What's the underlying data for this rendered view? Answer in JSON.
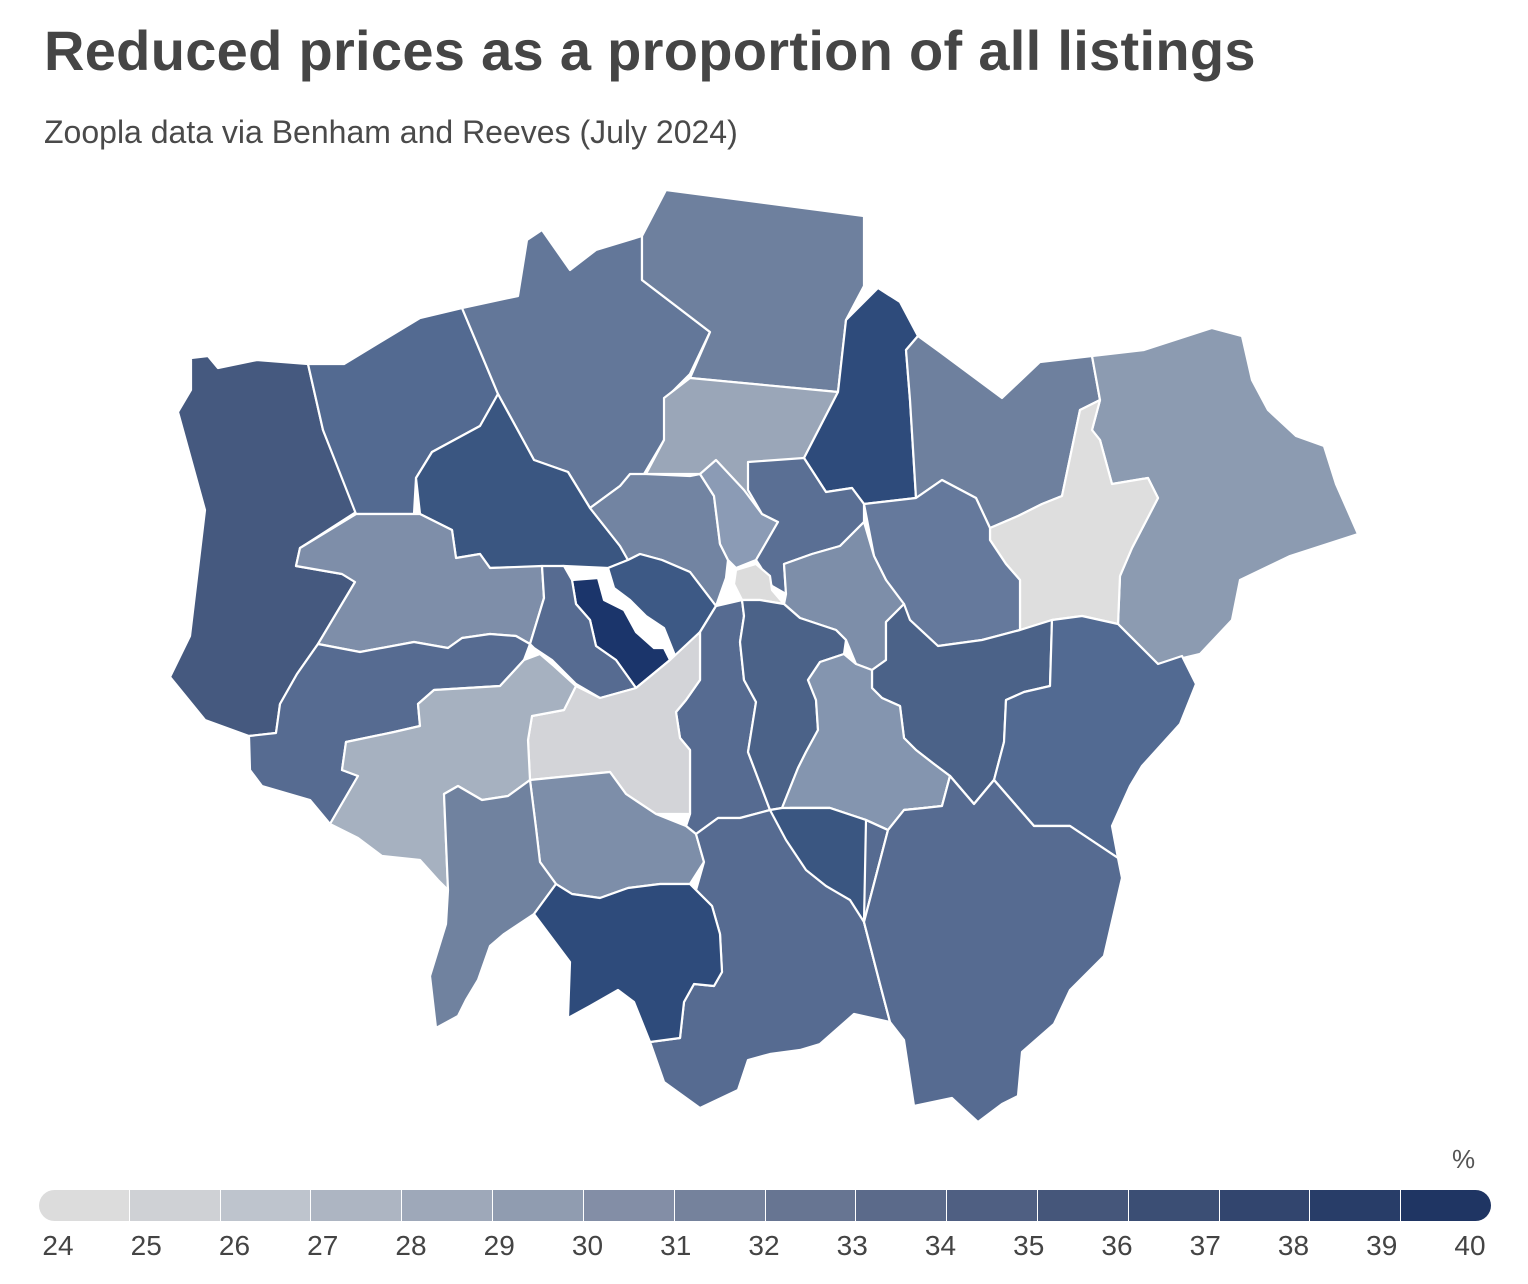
{
  "title": "Reduced prices as a proportion of all listings",
  "subtitle": "Zoopla data via Benham and Reeves (July 2024)",
  "legend": {
    "unit": "%",
    "min": 24,
    "max": 40,
    "ticks": [
      "24",
      "25",
      "26",
      "27",
      "28",
      "29",
      "30",
      "31",
      "32",
      "33",
      "34",
      "35",
      "36",
      "37",
      "38",
      "39",
      "40"
    ],
    "colors": [
      "#dcdcdc",
      "#cfd1d5",
      "#bec4cd",
      "#adb5c2",
      "#9ea8b9",
      "#909cb0",
      "#838ea6",
      "#75829c",
      "#677592",
      "#5b6a8a",
      "#4f5f82",
      "#45567a",
      "#3b4e74",
      "#32456e",
      "#283d68",
      "#1f3563"
    ]
  },
  "regions": [
    {
      "value": 35.5,
      "color": "#45597f"
    },
    {
      "value": 34.5,
      "color": "#536a91"
    },
    {
      "value": 33.5,
      "color": "#637799"
    },
    {
      "value": 32.5,
      "color": "#6e809e"
    },
    {
      "value": 30.0,
      "color": "#9aa6b8"
    },
    {
      "value": 37.0,
      "color": "#2e4b7b"
    },
    {
      "value": 32.5,
      "color": "#6e809e"
    },
    {
      "value": 30.5,
      "color": "#8c9bb1"
    },
    {
      "value": 24.5,
      "color": "#dedede"
    },
    {
      "value": 35.0,
      "color": "#3a5681"
    },
    {
      "value": 31.5,
      "color": "#7e8ea9"
    },
    {
      "value": 34.0,
      "color": "#566b91"
    },
    {
      "value": 32.5,
      "color": "#7284a2"
    },
    {
      "value": 30.5,
      "color": "#8b9bb5"
    },
    {
      "value": 34.0,
      "color": "#5a6f94"
    },
    {
      "value": 24.5,
      "color": "#dcdcdc"
    },
    {
      "value": 33.5,
      "color": "#65799c"
    },
    {
      "value": 31.5,
      "color": "#7d8ea9"
    },
    {
      "value": 35.5,
      "color": "#3d5985"
    },
    {
      "value": 39.5,
      "color": "#1b356b"
    },
    {
      "value": 34.0,
      "color": "#566b91"
    },
    {
      "value": 34.0,
      "color": "#566b91"
    },
    {
      "value": 35.0,
      "color": "#4b6288"
    },
    {
      "value": 25.0,
      "color": "#d3d4d8"
    },
    {
      "value": 28.5,
      "color": "#a6b1c0"
    },
    {
      "value": 35.0,
      "color": "#4b6288"
    },
    {
      "value": 34.5,
      "color": "#526a92"
    },
    {
      "value": 31.0,
      "color": "#8495af"
    },
    {
      "value": 32.0,
      "color": "#7d8ea9"
    },
    {
      "value": 32.5,
      "color": "#70829f"
    },
    {
      "value": 34.0,
      "color": "#566b91"
    },
    {
      "value": 34.0,
      "color": "#576c92"
    },
    {
      "value": 37.0,
      "color": "#2e4b7b"
    },
    {
      "value": 35.5,
      "color": "#3a5681"
    },
    {
      "value": 34.0,
      "color": "#566b91"
    }
  ]
}
